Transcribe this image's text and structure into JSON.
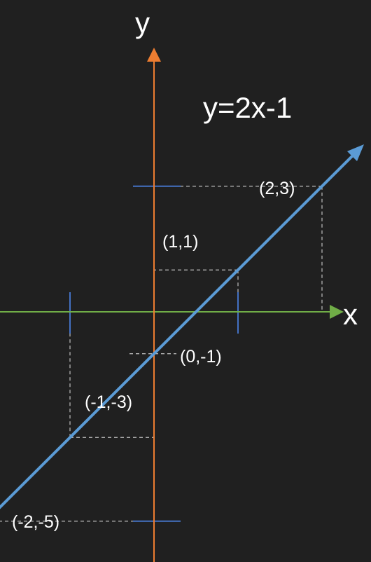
{
  "axes": {
    "x_label": "x",
    "y_label": "y",
    "x_color": "#70AD47",
    "y_color": "#ED7D31",
    "tick_color": "#4472C4"
  },
  "line": {
    "equation": "y=2x-1",
    "slope": 2,
    "intercept": -1,
    "color": "#5B9BD5",
    "x_from": -2.3,
    "x_to": 2.5
  },
  "ticks_x": [
    -1,
    1
  ],
  "ticks_y": [
    -5,
    3
  ],
  "points": [
    {
      "x": 2,
      "y": 3,
      "label": "(2,3)"
    },
    {
      "x": 1,
      "y": 1,
      "label": "(1,1)"
    },
    {
      "x": 0,
      "y": -1,
      "label": "(0,-1)"
    },
    {
      "x": -1,
      "y": -3,
      "label": "(-1,-3)"
    },
    {
      "x": -2,
      "y": -5,
      "label": "(-2,-5)"
    }
  ]
}
